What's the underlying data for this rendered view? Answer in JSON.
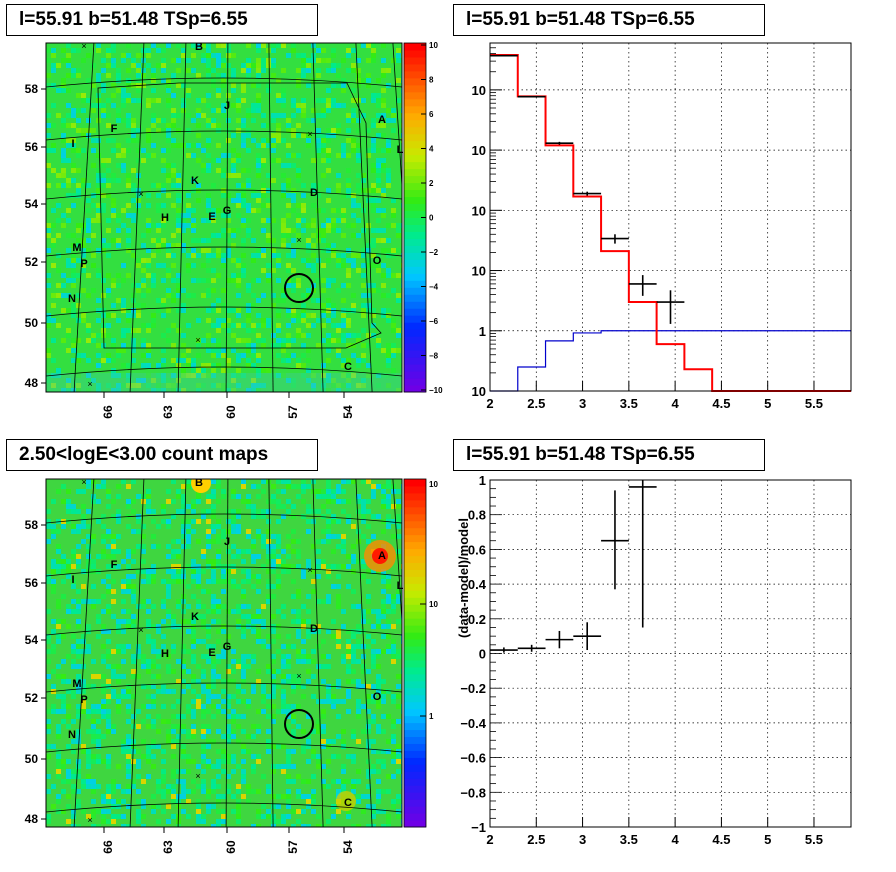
{
  "colors": {
    "data": "#000000",
    "model": "#ff0000",
    "background": "#0000cc",
    "source_circle": "#000000"
  },
  "panels": {
    "tl": {
      "title": "l=55.91 b=51.48 TSp=6.55"
    },
    "tr": {
      "title": "l=55.91 b=51.48 TSp=6.55"
    },
    "bl": {
      "title": "2.50<logE<3.00 count maps"
    },
    "br": {
      "title": "l=55.91 b=51.48 TSp=6.55"
    }
  },
  "sky_maps": {
    "l_ticks": [
      "66",
      "63",
      "60",
      "57",
      "54"
    ],
    "b_ticks": [
      "58",
      "56",
      "54",
      "52",
      "50",
      "48"
    ],
    "source_labels": [
      "A",
      "B",
      "C",
      "D",
      "E",
      "F",
      "G",
      "H",
      "I",
      "J",
      "K",
      "L",
      "M",
      "N",
      "O",
      "P"
    ],
    "residual_colorbar": {
      "ticks": [
        "10",
        "8",
        "6",
        "4",
        "2",
        "0",
        "−2",
        "−4",
        "−6",
        "−8",
        "−10"
      ],
      "range": [
        -10,
        10
      ]
    },
    "count_colorbar": {
      "ticks": [
        "10",
        "1"
      ],
      "top_label": "10",
      "top_exp": "2",
      "scale": "log"
    }
  },
  "chart_data": [
    {
      "type": "line",
      "title": "l=55.91 b=51.48 TSp=6.55",
      "xlabel": "",
      "ylabel": "",
      "xlim": [
        2,
        5.9
      ],
      "ylim": [
        0.1,
        60000
      ],
      "yscale": "log",
      "grid": true,
      "x_ticks": [
        2,
        2.5,
        3,
        3.5,
        4,
        4.5,
        5,
        5.5
      ],
      "x_tick_labels": [
        "2",
        "2.5",
        "3",
        "3.5",
        "4",
        "4.5",
        "5",
        "5.5"
      ],
      "y_tick_labels": [
        {
          "base": "10",
          "exp": "-1",
          "value": 0.1
        },
        {
          "base": "1",
          "exp": "",
          "value": 1
        },
        {
          "base": "10",
          "exp": "",
          "value": 10
        },
        {
          "base": "10",
          "exp": "2",
          "value": 100
        },
        {
          "base": "10",
          "exp": "3",
          "value": 1000
        },
        {
          "base": "10",
          "exp": "4",
          "value": 10000
        }
      ],
      "bin_edges": [
        2,
        2.3,
        2.6,
        2.9,
        3.2,
        3.5,
        3.8,
        4.1,
        4.4,
        4.7,
        5.0,
        5.3,
        5.6,
        5.9
      ],
      "series": [
        {
          "role": "model",
          "kind": "step",
          "values": [
            38000,
            7800,
            1200,
            170,
            21,
            3,
            0.6,
            0.23,
            0.1,
            0.1,
            0.1,
            0.1,
            0.1
          ]
        },
        {
          "role": "background",
          "kind": "step",
          "values": [
            0.07,
            0.25,
            0.68,
            0.92,
            1,
            1,
            1,
            1,
            1,
            1,
            1,
            1,
            1
          ]
        },
        {
          "role": "data",
          "kind": "errorbar",
          "points": [
            {
              "x": 2.15,
              "y": 37000,
              "ylo": 36600,
              "yhi": 37400
            },
            {
              "x": 2.45,
              "y": 7700,
              "ylo": 7500,
              "yhi": 7900
            },
            {
              "x": 2.75,
              "y": 1300,
              "ylo": 1230,
              "yhi": 1370
            },
            {
              "x": 3.05,
              "y": 190,
              "ylo": 176,
              "yhi": 204
            },
            {
              "x": 3.35,
              "y": 34,
              "ylo": 28,
              "yhi": 40
            },
            {
              "x": 3.65,
              "y": 6,
              "ylo": 3.8,
              "yhi": 8.4
            },
            {
              "x": 3.95,
              "y": 3,
              "ylo": 1.3,
              "yhi": 4.7
            }
          ]
        }
      ]
    },
    {
      "type": "scatter",
      "title": "l=55.91 b=51.48 TSp=6.55",
      "xlabel": "",
      "ylabel": "(data-model)/model",
      "xlim": [
        2,
        5.9
      ],
      "ylim": [
        -1,
        1
      ],
      "grid": true,
      "x_ticks": [
        2,
        2.5,
        3,
        3.5,
        4,
        4.5,
        5,
        5.5
      ],
      "x_tick_labels": [
        "2",
        "2.5",
        "3",
        "3.5",
        "4",
        "4.5",
        "5",
        "5.5"
      ],
      "y_ticks": [
        -1,
        -0.8,
        -0.6,
        -0.4,
        -0.2,
        0,
        0.2,
        0.4,
        0.6,
        0.8,
        1
      ],
      "y_tick_labels": [
        "−1",
        "−0.8",
        "−0.6",
        "−0.4",
        "−0.2",
        "0",
        "0.2",
        "0.4",
        "0.6",
        "0.8",
        "1"
      ],
      "points": [
        {
          "x": 2.15,
          "y": 0.02,
          "ylo": 0.005,
          "yhi": 0.035
        },
        {
          "x": 2.45,
          "y": 0.03,
          "ylo": 0.01,
          "yhi": 0.05
        },
        {
          "x": 2.75,
          "y": 0.08,
          "ylo": 0.03,
          "yhi": 0.13
        },
        {
          "x": 3.05,
          "y": 0.1,
          "ylo": 0.02,
          "yhi": 0.18
        },
        {
          "x": 3.35,
          "y": 0.65,
          "ylo": 0.37,
          "yhi": 0.94
        },
        {
          "x": 3.65,
          "y": 0.96,
          "ylo": 0.15,
          "yhi": 1.0
        }
      ]
    }
  ]
}
